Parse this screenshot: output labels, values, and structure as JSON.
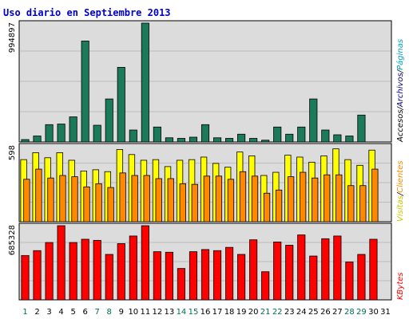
{
  "title": "Uso diario en Septiembre 2013",
  "colors": {
    "background": "#ffffff",
    "panel_bg": "#dcdcdc",
    "grid": "#bdbdbd",
    "title": "#0000cc",
    "weekday": "#000000",
    "weekend": "#007050",
    "accesos": "#000000",
    "archivos": "#000080",
    "paginas": "#00a0c0",
    "hits": "#1a7a5a",
    "visitas": "#ffff00",
    "clientes": "#ff8800",
    "kbytes": "#ff0000"
  },
  "side_labels": {
    "top": [
      "Accesos",
      "Archivos",
      "Páginas"
    ],
    "middle": [
      "Visitas",
      "Clientes"
    ],
    "bottom": [
      "KBytes"
    ]
  },
  "chart_data": [
    {
      "type": "bar",
      "panel": "top",
      "ymax_label": "994897",
      "ylim": [
        0,
        994897
      ],
      "grid": true,
      "categories": [
        "1",
        "2",
        "3",
        "4",
        "5",
        "6",
        "7",
        "8",
        "9",
        "10",
        "11",
        "12",
        "13",
        "14",
        "15",
        "16",
        "17",
        "18",
        "19",
        "20",
        "21",
        "22",
        "23",
        "24",
        "25",
        "26",
        "27",
        "28",
        "29",
        "30",
        "31"
      ],
      "weekend_days": [
        "1",
        "7",
        "8",
        "14",
        "15",
        "21",
        "22",
        "28",
        "29"
      ],
      "series": [
        {
          "name": "Accesos",
          "color": "#1a7a5a",
          "values": [
            20000,
            50000,
            145000,
            150000,
            210000,
            845000,
            140000,
            360000,
            625000,
            100000,
            994897,
            125000,
            35000,
            30000,
            40000,
            145000,
            35000,
            30000,
            65000,
            30000,
            15000,
            125000,
            65000,
            125000,
            360000,
            100000,
            60000,
            50000,
            225000,
            0,
            0
          ]
        }
      ]
    },
    {
      "type": "bar",
      "panel": "middle",
      "ymax_label": "598",
      "ylim": [
        0,
        598
      ],
      "grid": true,
      "categories": [
        "1",
        "2",
        "3",
        "4",
        "5",
        "6",
        "7",
        "8",
        "9",
        "10",
        "11",
        "12",
        "13",
        "14",
        "15",
        "16",
        "17",
        "18",
        "19",
        "20",
        "21",
        "22",
        "23",
        "24",
        "25",
        "26",
        "27",
        "28",
        "29",
        "30",
        "31"
      ],
      "series": [
        {
          "name": "Visitas",
          "color": "#ffff00",
          "values": [
            490,
            545,
            505,
            545,
            485,
            400,
            410,
            395,
            570,
            530,
            485,
            490,
            435,
            485,
            490,
            510,
            460,
            430,
            550,
            520,
            365,
            390,
            525,
            510,
            470,
            520,
            575,
            490,
            445,
            565,
            0
          ]
        },
        {
          "name": "Clientes",
          "color": "#ff8800",
          "values": [
            335,
            415,
            345,
            365,
            355,
            275,
            300,
            270,
            385,
            365,
            365,
            340,
            340,
            300,
            295,
            360,
            360,
            335,
            395,
            360,
            225,
            250,
            355,
            390,
            345,
            370,
            370,
            285,
            285,
            415,
            0
          ]
        }
      ]
    },
    {
      "type": "bar",
      "panel": "bottom",
      "ymax_label": "685328",
      "ylim": [
        0,
        685328
      ],
      "grid": true,
      "categories": [
        "1",
        "2",
        "3",
        "4",
        "5",
        "6",
        "7",
        "8",
        "9",
        "10",
        "11",
        "12",
        "13",
        "14",
        "15",
        "16",
        "17",
        "18",
        "19",
        "20",
        "21",
        "22",
        "23",
        "24",
        "25",
        "26",
        "27",
        "28",
        "29",
        "30",
        "31"
      ],
      "series": [
        {
          "name": "KBytes",
          "color": "#ff0000",
          "values": [
            410000,
            455000,
            530000,
            685328,
            530000,
            560000,
            550000,
            420000,
            520000,
            590000,
            685328,
            445000,
            440000,
            290000,
            445000,
            465000,
            455000,
            485000,
            420000,
            555000,
            260000,
            535000,
            505000,
            600000,
            405000,
            565000,
            590000,
            350000,
            420000,
            560000,
            0
          ]
        }
      ]
    }
  ]
}
